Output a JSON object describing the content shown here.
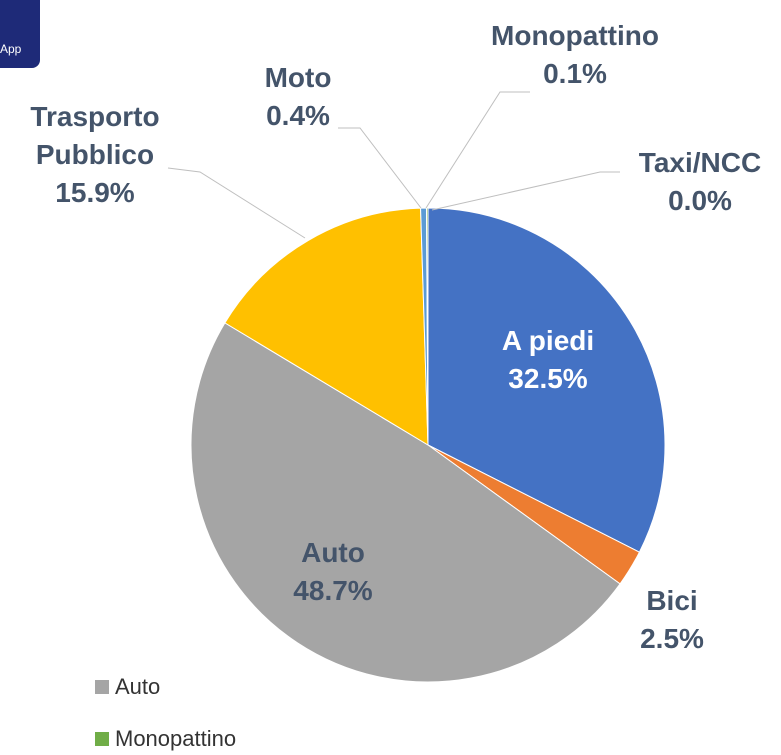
{
  "corner_badge": "App",
  "chart_data": {
    "type": "pie",
    "categories": [
      "A piedi",
      "Bici",
      "Auto",
      "Trasporto Pubblico",
      "Moto",
      "Monopattino",
      "Taxi/NCC"
    ],
    "values": [
      32.5,
      2.5,
      48.7,
      15.9,
      0.4,
      0.1,
      0.0
    ],
    "value_labels": [
      "32.5%",
      "2.5%",
      "48.7%",
      "15.9%",
      "0.4%",
      "0.1%",
      "0.0%"
    ],
    "colors": [
      "#4472c4",
      "#ed7d31",
      "#a5a5a5",
      "#ffc000",
      "#5b9bd5",
      "#70ad47",
      "#264478"
    ]
  }
}
